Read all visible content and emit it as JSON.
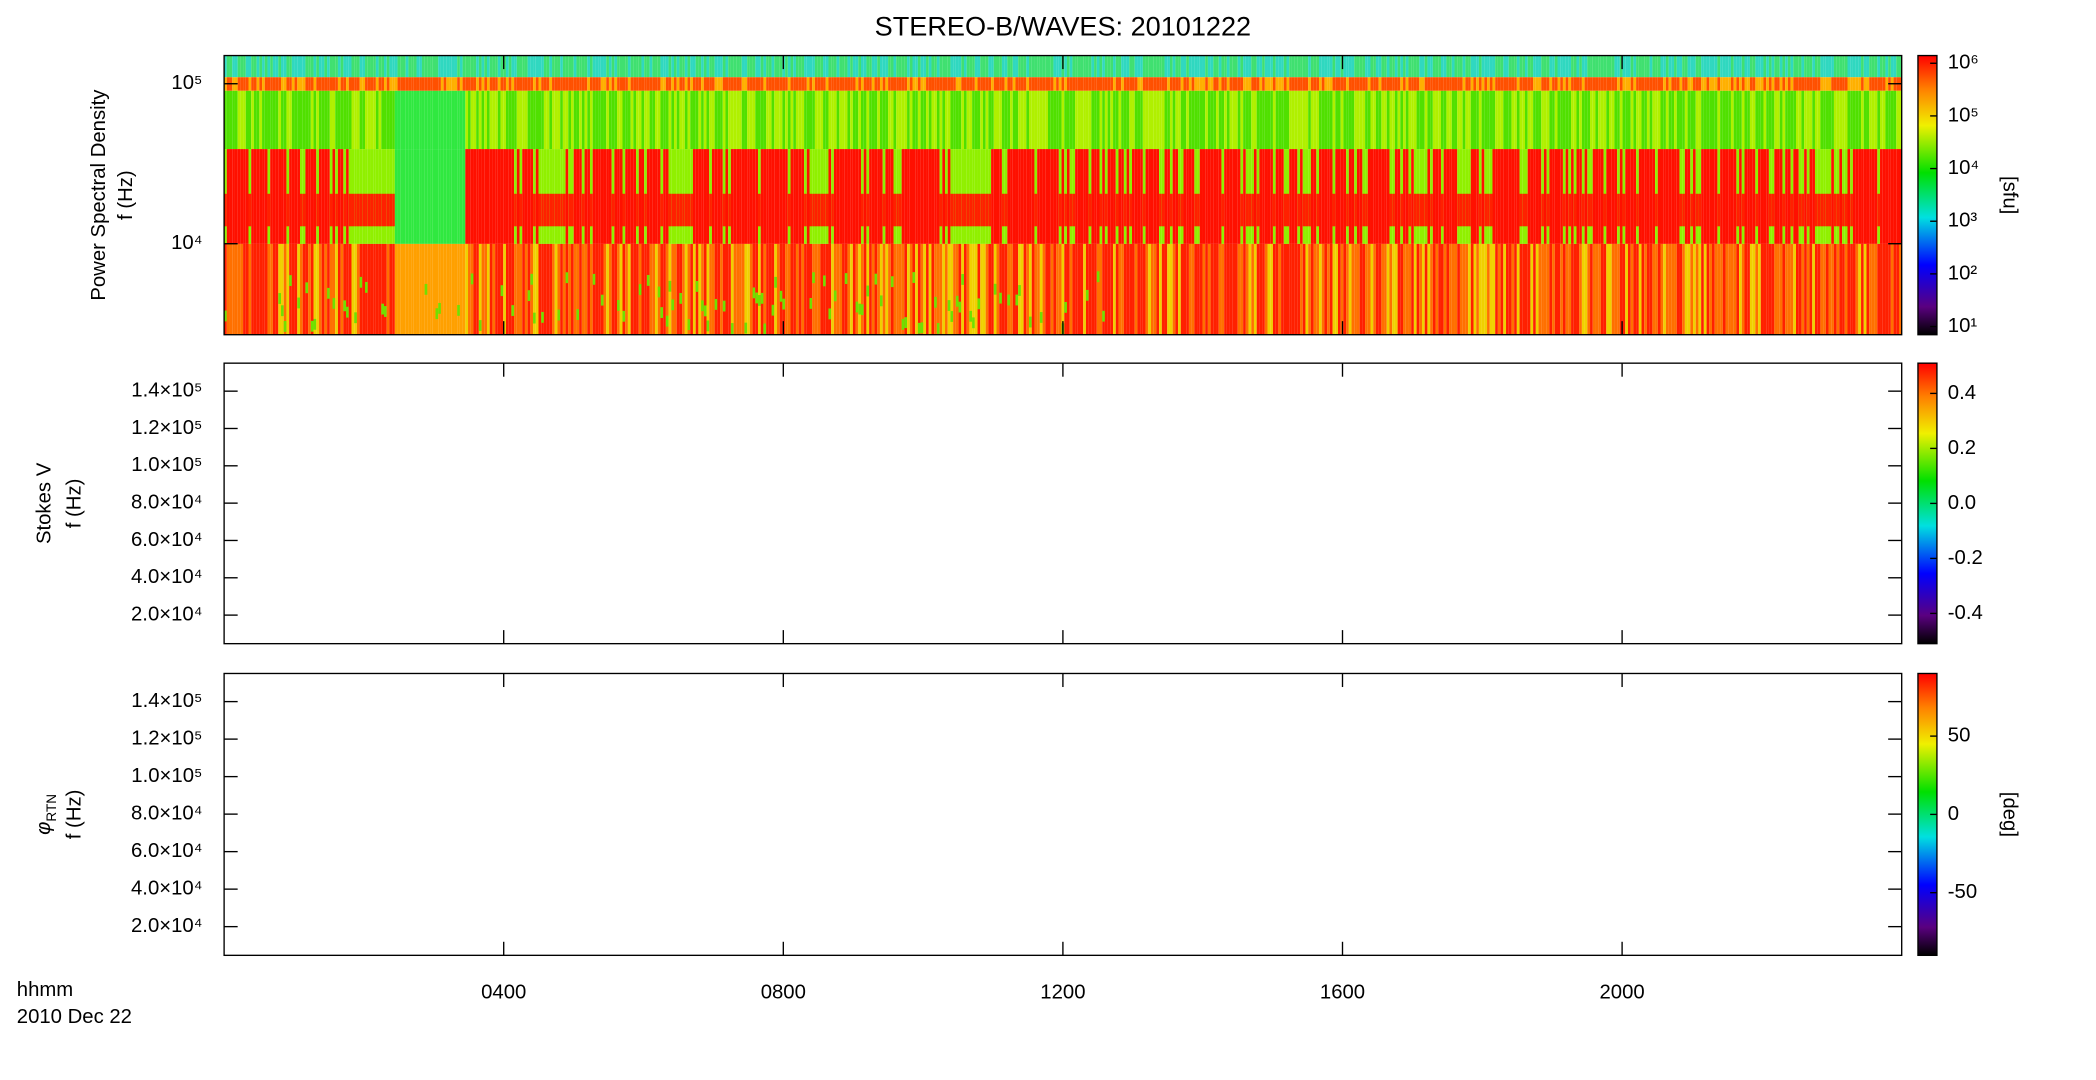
{
  "chart_data": [
    {
      "type": "heatmap",
      "title": "STEREO-B/WAVES: 20101222",
      "ylabel": [
        "Power Spectral Density",
        "f (Hz)"
      ],
      "ylog": true,
      "ylim": [
        2700,
        150000
      ],
      "yticks": [
        {
          "value": 10000,
          "label": "10⁴"
        },
        {
          "value": 100000,
          "label": "10⁵"
        }
      ],
      "colormap": "rainbow",
      "colorbar": {
        "zlog": true,
        "zlim": [
          7,
          1400000
        ],
        "zlabel": "[sfu]",
        "zticks": [
          {
            "value": 10,
            "label": "10¹"
          },
          {
            "value": 100,
            "label": "10²"
          },
          {
            "value": 1000,
            "label": "10³"
          },
          {
            "value": 10000,
            "label": "10⁴"
          },
          {
            "value": 100000,
            "label": "10⁵"
          },
          {
            "value": 1000000,
            "label": "10⁶"
          }
        ]
      }
    },
    {
      "type": "heatmap",
      "ylabel": [
        "Stokes V",
        "f (Hz)"
      ],
      "ylog": false,
      "ylim": [
        4700,
        155000
      ],
      "yticks": [
        {
          "value": 20000,
          "label": "2.0×10⁴"
        },
        {
          "value": 40000,
          "label": "4.0×10⁴"
        },
        {
          "value": 60000,
          "label": "6.0×10⁴"
        },
        {
          "value": 80000,
          "label": "8.0×10⁴"
        },
        {
          "value": 100000,
          "label": "1.0×10⁵"
        },
        {
          "value": 120000,
          "label": "1.2×10⁵"
        },
        {
          "value": 140000,
          "label": "1.4×10⁵"
        }
      ],
      "colormap": "rainbow",
      "colorbar": {
        "zlog": false,
        "zlim": [
          -0.51,
          0.51
        ],
        "zticks": [
          -0.4,
          -0.2,
          {
            "value": 0,
            "label": "0.0"
          },
          0.2,
          0.4
        ]
      }
    },
    {
      "type": "heatmap",
      "ylabel_symbol": "φ",
      "ylabel_subscript": "RTN",
      "ylabel": [
        "f (Hz)"
      ],
      "ylog": false,
      "ylim": [
        4700,
        155000
      ],
      "yticks": [
        {
          "value": 20000,
          "label": "2.0×10⁴"
        },
        {
          "value": 40000,
          "label": "4.0×10⁴"
        },
        {
          "value": 60000,
          "label": "6.0×10⁴"
        },
        {
          "value": 80000,
          "label": "8.0×10⁴"
        },
        {
          "value": 100000,
          "label": "1.0×10⁵"
        },
        {
          "value": 120000,
          "label": "1.2×10⁵"
        },
        {
          "value": 140000,
          "label": "1.4×10⁵"
        }
      ],
      "colormap": "rainbow",
      "colorbar": {
        "zlog": false,
        "zlim": [
          -90,
          90
        ],
        "zlabel": "[deg]",
        "zticks": [
          -50,
          0,
          50
        ]
      },
      "xlim": [
        0,
        24
      ],
      "xticks": [
        {
          "value": 4,
          "label": "0400"
        },
        {
          "value": 8,
          "label": "0800"
        },
        {
          "value": 12,
          "label": "1200"
        },
        {
          "value": 16,
          "label": "1600"
        },
        {
          "value": 20,
          "label": "2000"
        }
      ],
      "xlabel": [
        "hhmm",
        "2010 Dec 22"
      ]
    }
  ]
}
